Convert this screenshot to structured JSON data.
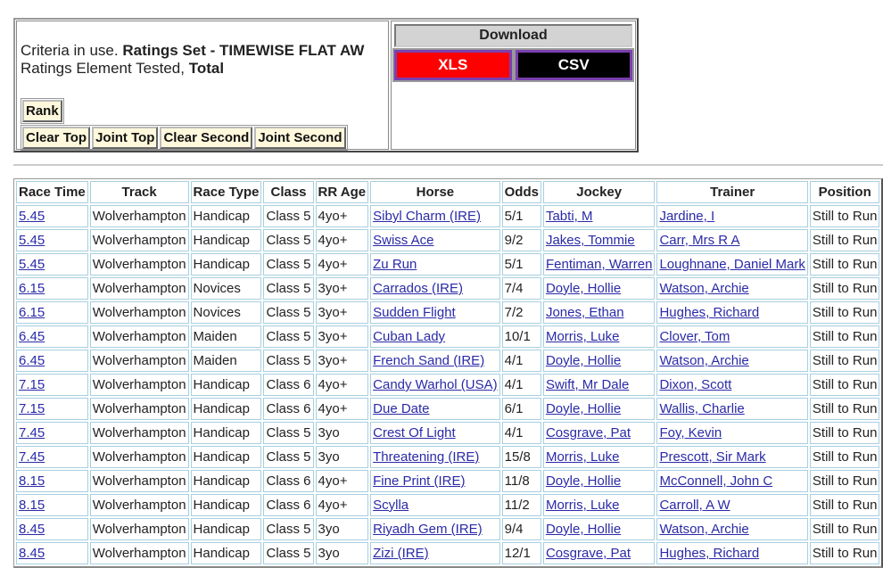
{
  "criteria": {
    "prefix": "Criteria in use.",
    "ratings_set": "Ratings Set - TIMEWISE FLAT AW",
    "element_prefix": "Ratings Element Tested,",
    "element": "Total"
  },
  "buttons": {
    "rank": "Rank",
    "clear_top": "Clear Top",
    "joint_top": "Joint Top",
    "clear_second": "Clear Second",
    "joint_second": "Joint Second"
  },
  "download": {
    "title": "Download",
    "xls": "XLS",
    "csv": "CSV",
    "xls_color": "#ff0000",
    "csv_color": "#000000"
  },
  "table": {
    "headers": [
      "Race Time",
      "Track",
      "Race Type",
      "Class",
      "RR Age",
      "Horse",
      "Odds",
      "Jockey",
      "Trainer",
      "Position"
    ],
    "rows": [
      [
        "5.45",
        "Wolverhampton",
        "Handicap",
        "Class 5",
        "4yo+",
        "Sibyl Charm (IRE)",
        "5/1",
        "Tabti, M",
        "Jardine, I",
        "Still to Run"
      ],
      [
        "5.45",
        "Wolverhampton",
        "Handicap",
        "Class 5",
        "4yo+",
        "Swiss Ace",
        "9/2",
        "Jakes, Tommie",
        "Carr, Mrs R A",
        "Still to Run"
      ],
      [
        "5.45",
        "Wolverhampton",
        "Handicap",
        "Class 5",
        "4yo+",
        "Zu Run",
        "5/1",
        "Fentiman, Warren",
        "Loughnane, Daniel Mark",
        "Still to Run"
      ],
      [
        "6.15",
        "Wolverhampton",
        "Novices",
        "Class 5",
        "3yo+",
        "Carrados (IRE)",
        "7/4",
        "Doyle, Hollie",
        "Watson, Archie",
        "Still to Run"
      ],
      [
        "6.15",
        "Wolverhampton",
        "Novices",
        "Class 5",
        "3yo+",
        "Sudden Flight",
        "7/2",
        "Jones, Ethan",
        "Hughes, Richard",
        "Still to Run"
      ],
      [
        "6.45",
        "Wolverhampton",
        "Maiden",
        "Class 5",
        "3yo+",
        "Cuban Lady",
        "10/1",
        "Morris, Luke",
        "Clover, Tom",
        "Still to Run"
      ],
      [
        "6.45",
        "Wolverhampton",
        "Maiden",
        "Class 5",
        "3yo+",
        "French Sand (IRE)",
        "4/1",
        "Doyle, Hollie",
        "Watson, Archie",
        "Still to Run"
      ],
      [
        "7.15",
        "Wolverhampton",
        "Handicap",
        "Class 6",
        "4yo+",
        "Candy Warhol (USA)",
        "4/1",
        "Swift, Mr Dale",
        "Dixon, Scott",
        "Still to Run"
      ],
      [
        "7.15",
        "Wolverhampton",
        "Handicap",
        "Class 6",
        "4yo+",
        "Due Date",
        "6/1",
        "Doyle, Hollie",
        "Wallis, Charlie",
        "Still to Run"
      ],
      [
        "7.45",
        "Wolverhampton",
        "Handicap",
        "Class 5",
        "3yo",
        "Crest Of Light",
        "4/1",
        "Cosgrave, Pat",
        "Foy, Kevin",
        "Still to Run"
      ],
      [
        "7.45",
        "Wolverhampton",
        "Handicap",
        "Class 5",
        "3yo",
        "Threatening (IRE)",
        "15/8",
        "Morris, Luke",
        "Prescott, Sir Mark",
        "Still to Run"
      ],
      [
        "8.15",
        "Wolverhampton",
        "Handicap",
        "Class 6",
        "4yo+",
        "Fine Print (IRE)",
        "11/8",
        "Doyle, Hollie",
        "McConnell, John C",
        "Still to Run"
      ],
      [
        "8.15",
        "Wolverhampton",
        "Handicap",
        "Class 6",
        "4yo+",
        "Scylla",
        "11/2",
        "Morris, Luke",
        "Carroll, A W",
        "Still to Run"
      ],
      [
        "8.45",
        "Wolverhampton",
        "Handicap",
        "Class 5",
        "3yo",
        "Riyadh Gem (IRE)",
        "9/4",
        "Doyle, Hollie",
        "Watson, Archie",
        "Still to Run"
      ],
      [
        "8.45",
        "Wolverhampton",
        "Handicap",
        "Class 5",
        "3yo",
        "Zizi (IRE)",
        "12/1",
        "Cosgrave, Pat",
        "Hughes, Richard",
        "Still to Run"
      ]
    ]
  }
}
